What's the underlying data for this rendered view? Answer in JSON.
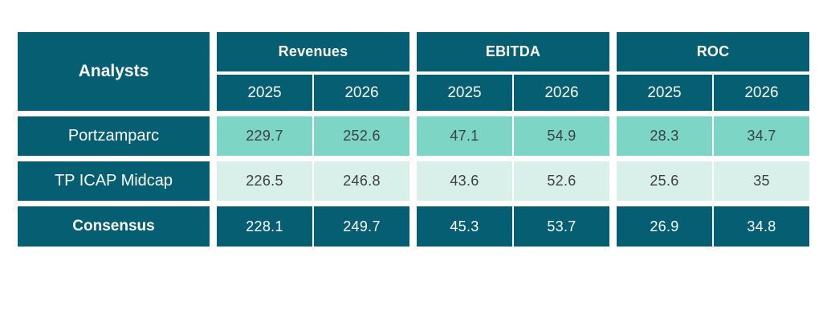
{
  "chart_data": {
    "type": "table",
    "row_header": "Analysts",
    "column_groups": [
      {
        "label": "Revenues",
        "years": [
          "2025",
          "2026"
        ]
      },
      {
        "label": "EBITDA",
        "years": [
          "2025",
          "2026"
        ]
      },
      {
        "label": "ROC",
        "years": [
          "2025",
          "2026"
        ]
      }
    ],
    "rows": [
      {
        "analyst": "Portzamparc",
        "emphasis": false,
        "values": [
          [
            "229.7",
            "252.6"
          ],
          [
            "47.1",
            "54.9"
          ],
          [
            "28.3",
            "34.7"
          ]
        ]
      },
      {
        "analyst": "TP ICAP Midcap",
        "emphasis": false,
        "values": [
          [
            "226.5",
            "246.8"
          ],
          [
            "43.6",
            "52.6"
          ],
          [
            "25.6",
            "35"
          ]
        ]
      },
      {
        "analyst": "Consensus",
        "emphasis": true,
        "values": [
          [
            "228.1",
            "249.7"
          ],
          [
            "45.3",
            "53.7"
          ],
          [
            "26.9",
            "34.8"
          ]
        ]
      }
    ]
  },
  "colors": {
    "dark_teal": "#055e72",
    "medium_teal": "#7dd5c5",
    "light_teal": "#d9f0ea",
    "text_dark": "#3f3f3f",
    "text_white": "#ffffff",
    "background": "#ffffff"
  }
}
